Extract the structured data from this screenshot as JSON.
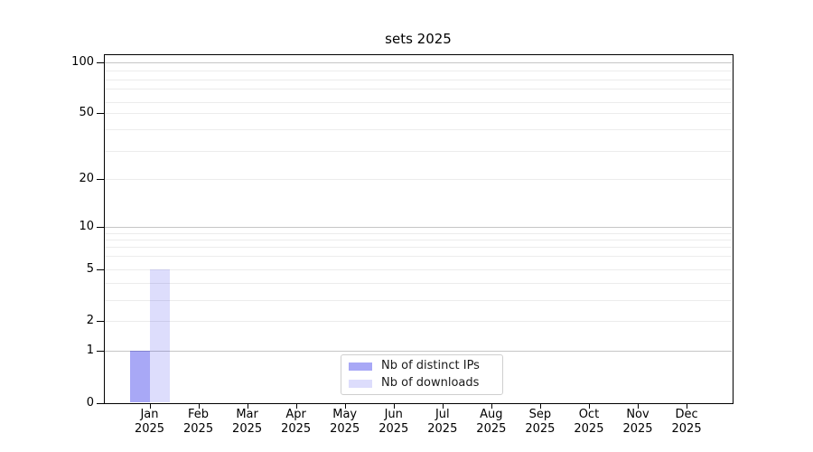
{
  "chart_data": {
    "type": "bar",
    "title": "sets 2025",
    "x": {
      "months": [
        "Jan",
        "Feb",
        "Mar",
        "Apr",
        "May",
        "Jun",
        "Jul",
        "Aug",
        "Sep",
        "Oct",
        "Nov",
        "Dec"
      ],
      "year": "2025"
    },
    "series": [
      {
        "name": "Nb of distinct IPs",
        "fill": "rgba(0,0,230,0.34)",
        "swatch_hex": "#a9a9f4",
        "values": [
          1,
          0,
          0,
          0,
          0,
          0,
          0,
          0,
          0,
          0,
          0,
          0
        ]
      },
      {
        "name": "Nb of downloads",
        "fill": "rgba(0,0,230,0.135)",
        "swatch_hex": "#dcdcf9",
        "values": [
          5,
          0,
          0,
          0,
          0,
          0,
          0,
          0,
          0,
          0,
          0,
          0
        ]
      }
    ],
    "yscale": "log-like (0 baseline, then log decades)",
    "ytick_labels": [
      "0",
      "1",
      "2",
      "5",
      "10",
      "20",
      "50",
      "100"
    ],
    "ylim": [
      0,
      112
    ],
    "grid": {
      "enabled": true,
      "major_color": "#c6c6c6",
      "minor_color": "#ececec"
    },
    "legend": {
      "position": "lower center",
      "entries": [
        "Nb of distinct IPs",
        "Nb of downloads"
      ]
    },
    "colors": {
      "spine": "#000000",
      "text": "#000000",
      "background": "#ffffff"
    }
  }
}
